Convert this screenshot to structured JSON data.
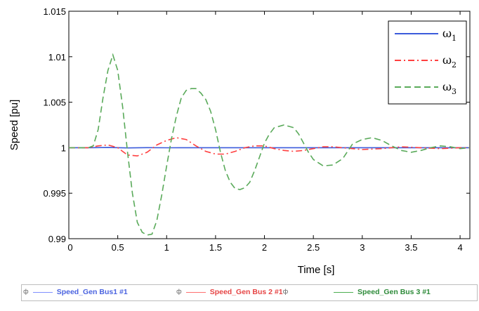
{
  "chart_data": {
    "type": "line",
    "xlabel": "Time [s]",
    "ylabel": "Speed [pu]",
    "xlim": [
      0,
      4.1
    ],
    "ylim": [
      0.99,
      1.015
    ],
    "x_ticks": [
      "0",
      "0.5",
      "1",
      "1.5",
      "2",
      "2.5",
      "3",
      "3.5",
      "4"
    ],
    "y_ticks": [
      "1.015",
      "1.01",
      "1.005",
      "1",
      "0.995",
      "0.99"
    ],
    "grid": false,
    "legend_position": "top-right",
    "series": [
      {
        "name": "ω1",
        "sub": "1",
        "color": "#3b5bdb",
        "style": "solid",
        "x": [
          0,
          0.2,
          0.4,
          0.6,
          0.8,
          1.0,
          1.2,
          1.4,
          1.6,
          1.8,
          2.0,
          2.2,
          2.4,
          2.6,
          2.8,
          3.0,
          3.2,
          3.4,
          3.6,
          3.8,
          4.0,
          4.1
        ],
        "y": [
          1.0,
          1.0,
          1.00002,
          0.99998,
          1.00001,
          0.99999,
          1.0,
          1.0,
          1.0,
          1.0,
          1.0,
          1.0,
          1.0,
          1.0,
          1.0,
          1.0,
          1.0,
          1.0,
          1.0,
          1.0,
          1.0,
          1.0
        ]
      },
      {
        "name": "ω2",
        "sub": "2",
        "color": "#ff4040",
        "style": "dashdot",
        "x": [
          0,
          0.1,
          0.2,
          0.3,
          0.4,
          0.5,
          0.6,
          0.7,
          0.8,
          0.9,
          1.0,
          1.1,
          1.2,
          1.3,
          1.4,
          1.5,
          1.6,
          1.7,
          1.8,
          1.9,
          2.0,
          2.1,
          2.2,
          2.3,
          2.4,
          2.5,
          2.6,
          2.7,
          2.8,
          2.9,
          3.0,
          3.2,
          3.4,
          3.6,
          3.8,
          4.0,
          4.1
        ],
        "y": [
          1.0,
          1.0,
          1.0,
          1.0002,
          1.0003,
          1.0,
          0.9992,
          0.9991,
          0.9995,
          1.0003,
          1.0008,
          1.0011,
          1.0009,
          1.0002,
          0.9996,
          0.9993,
          0.9993,
          0.9996,
          1.0,
          1.0002,
          1.0002,
          0.9999,
          0.9997,
          0.9996,
          0.9997,
          0.9999,
          1.0001,
          1.0001,
          1.0,
          0.9999,
          0.9998,
          0.9999,
          1.0001,
          1.0,
          0.9999,
          1.0,
          1.0
        ]
      },
      {
        "name": "ω3",
        "sub": "3",
        "color": "#5aaa5a",
        "style": "dashed",
        "x": [
          0,
          0.1,
          0.2,
          0.25,
          0.3,
          0.35,
          0.4,
          0.45,
          0.5,
          0.55,
          0.6,
          0.65,
          0.7,
          0.75,
          0.8,
          0.85,
          0.9,
          0.95,
          1.0,
          1.05,
          1.1,
          1.15,
          1.2,
          1.25,
          1.3,
          1.35,
          1.4,
          1.45,
          1.5,
          1.55,
          1.6,
          1.65,
          1.7,
          1.75,
          1.8,
          1.85,
          1.9,
          1.95,
          2.0,
          2.05,
          2.1,
          2.2,
          2.3,
          2.35,
          2.4,
          2.45,
          2.5,
          2.6,
          2.7,
          2.8,
          2.85,
          2.9,
          3.0,
          3.1,
          3.2,
          3.3,
          3.4,
          3.5,
          3.6,
          3.7,
          3.8,
          3.9,
          4.0,
          4.1
        ],
        "y": [
          1.0,
          1.0,
          1.0,
          1.0002,
          1.002,
          1.0055,
          1.0085,
          1.0102,
          1.0085,
          1.0045,
          0.9995,
          0.995,
          0.9918,
          0.9907,
          0.9904,
          0.9905,
          0.992,
          0.9948,
          0.998,
          1.001,
          1.0035,
          1.0055,
          1.0063,
          1.0065,
          1.0065,
          1.006,
          1.0053,
          1.004,
          1.002,
          0.9995,
          0.9975,
          0.9962,
          0.9955,
          0.9954,
          0.9956,
          0.9962,
          0.9975,
          0.999,
          1.0005,
          1.0015,
          1.0022,
          1.0025,
          1.0022,
          1.0015,
          1.0005,
          0.9995,
          0.9987,
          0.998,
          0.9981,
          0.9988,
          0.9996,
          1.0004,
          1.0009,
          1.0011,
          1.0008,
          1.0002,
          0.9997,
          0.9995,
          0.9997,
          1.0,
          1.0002,
          1.0001,
          0.9999,
          1.0
        ]
      }
    ]
  },
  "bottom_legend": {
    "items": [
      {
        "label": "Speed_Gen Bus1 #1",
        "color": "#7f8fff"
      },
      {
        "label": "Speed_Gen Bus 2 #1",
        "color": "#ff7070"
      },
      {
        "label": "Speed_Gen Bus 3 #1",
        "color": "#4caf50"
      }
    ],
    "marker_glyph": "ф"
  }
}
